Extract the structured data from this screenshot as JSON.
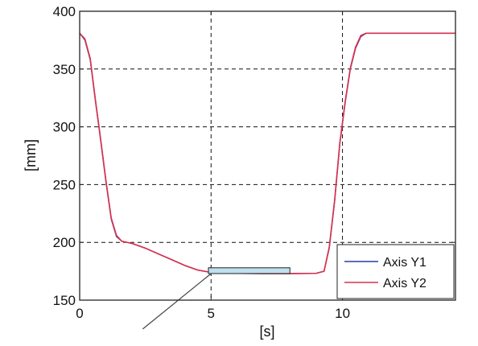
{
  "chart_data": {
    "type": "line",
    "xlabel": "[s]",
    "ylabel": "[mm]",
    "xlim": [
      0,
      14.3
    ],
    "ylim": [
      150,
      400
    ],
    "x_ticks": [
      0,
      5,
      10
    ],
    "y_ticks": [
      150,
      200,
      250,
      300,
      350,
      400
    ],
    "x_tick_labels": [
      "0",
      "5",
      "10"
    ],
    "y_tick_labels": [
      "150",
      "200",
      "250",
      "300",
      "350",
      "400"
    ],
    "grid": true,
    "legend_position": "bottom-right",
    "series": [
      {
        "name": "Axis Y1",
        "color": "#2b3aa8",
        "x": [
          0,
          0.2,
          0.4,
          0.6,
          0.8,
          1.0,
          1.2,
          1.4,
          1.6,
          1.8,
          2.0,
          2.5,
          3.0,
          3.5,
          4.0,
          4.5,
          5.0,
          5.5,
          6.0,
          7.0,
          8.0,
          9.0,
          9.3,
          9.5,
          9.7,
          9.9,
          10.1,
          10.3,
          10.5,
          10.7,
          10.9,
          11.5,
          12.0,
          13.0,
          14.3
        ],
        "y": [
          381,
          375,
          358,
          322,
          288,
          252,
          220,
          205,
          201,
          200,
          199,
          195,
          190,
          185,
          180,
          176,
          174,
          173.5,
          173.2,
          173,
          173,
          173.2,
          175,
          195,
          235,
          285,
          320,
          350,
          368,
          378,
          381,
          381,
          381,
          381,
          381
        ]
      },
      {
        "name": "Axis Y2",
        "color": "#d6324f",
        "x": [
          0,
          0.2,
          0.4,
          0.6,
          0.8,
          1.0,
          1.2,
          1.4,
          1.6,
          1.8,
          2.0,
          2.5,
          3.0,
          3.5,
          4.0,
          4.5,
          5.0,
          5.5,
          6.0,
          7.0,
          8.0,
          9.0,
          9.3,
          9.5,
          9.7,
          9.9,
          10.1,
          10.3,
          10.5,
          10.7,
          10.9,
          11.5,
          12.0,
          13.0,
          14.3
        ],
        "y": [
          381,
          376,
          359,
          323,
          289,
          253,
          221,
          206,
          201,
          200,
          199,
          195,
          190,
          185,
          180,
          176,
          174,
          173.5,
          173.2,
          173,
          173,
          173.2,
          175,
          196,
          236,
          286,
          321,
          351,
          369,
          379,
          381,
          381,
          381,
          381,
          381
        ]
      }
    ],
    "annotations": [
      {
        "type": "highlight-box",
        "x_range": [
          4.9,
          8.0
        ],
        "y_range": [
          173,
          178
        ],
        "fill": "#bfe0ef"
      },
      {
        "type": "pointer-line",
        "from": [
          5.0,
          173
        ],
        "to": [
          2.4,
          125
        ]
      }
    ]
  }
}
